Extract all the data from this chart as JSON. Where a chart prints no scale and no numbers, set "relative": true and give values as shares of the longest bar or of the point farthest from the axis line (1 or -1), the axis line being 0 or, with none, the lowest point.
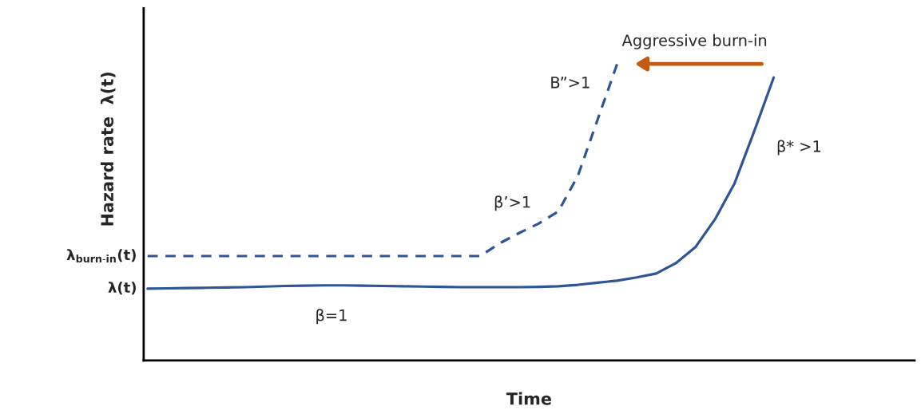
{
  "chart_data": {
    "type": "line",
    "relative": true,
    "xlabel": "Time",
    "ylabel": "Hazard rate  λ(t)",
    "categories": [
      null,
      null,
      null,
      null,
      null,
      null,
      null,
      null,
      null,
      null,
      null,
      null,
      null,
      null,
      null,
      null,
      null,
      null,
      null,
      null,
      null,
      null,
      null,
      null,
      null,
      null,
      null,
      null,
      null,
      null,
      null,
      null,
      null,
      null,
      null,
      null,
      null,
      null,
      null,
      null
    ],
    "series": [
      {
        "color": "#2f5597",
        "line_style": "solid",
        "values": [
          0.242,
          0.243,
          0.244,
          0.245,
          0.246,
          0.247,
          0.249,
          0.251,
          0.252,
          0.253,
          0.253,
          0.252,
          0.251,
          0.25,
          0.249,
          0.248,
          0.247,
          0.247,
          0.247,
          0.247,
          0.248,
          0.25,
          0.255,
          0.262,
          0.269,
          0.28,
          0.293,
          0.328,
          0.382,
          0.476,
          0.597,
          0.772,
          0.954,
          null,
          null,
          null,
          null,
          null,
          null,
          null
        ]
      },
      {
        "color": "#2f5597",
        "line_style": "dashed",
        "values": [
          0.352,
          0.352,
          0.352,
          0.352,
          0.352,
          0.352,
          0.352,
          0.352,
          0.352,
          0.352,
          0.352,
          0.352,
          0.352,
          0.352,
          0.352,
          0.352,
          0.352,
          0.352,
          0.395,
          0.43,
          0.462,
          0.503,
          0.624,
          0.812,
          1.0,
          null,
          null,
          null,
          null,
          null,
          null,
          null,
          null,
          null,
          null,
          null,
          null,
          null,
          null,
          null
        ]
      }
    ],
    "annotations": [
      "λ(t)",
      "λ$_{burn-in}$(t)",
      "Aggressive burn-in",
      "B”>1",
      "β’>1",
      "β* >1",
      "β=1"
    ]
  }
}
